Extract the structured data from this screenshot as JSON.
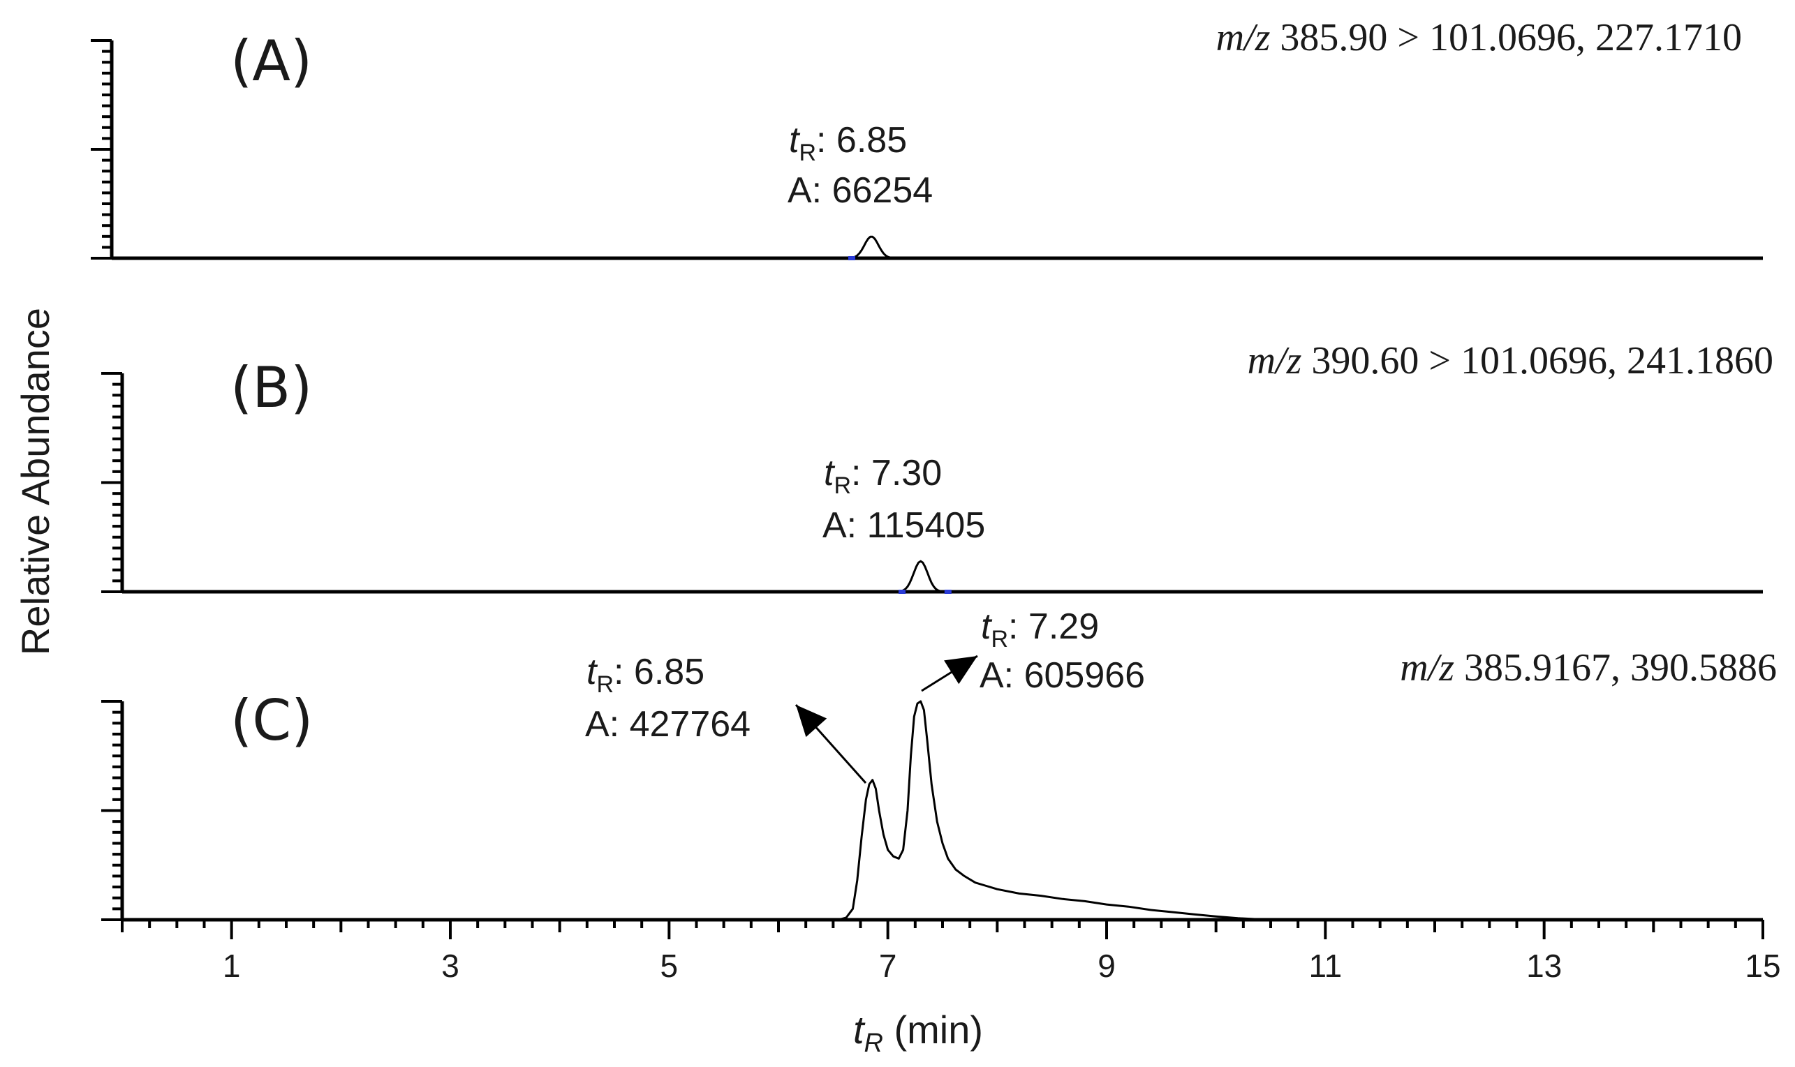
{
  "chart_data": {
    "type": "line",
    "xlabel_var": "t",
    "xlabel_sub": "R",
    "xlabel_unit": " (min)",
    "ylabel": "Relative  Abundance",
    "xlim": [
      0,
      15
    ],
    "xtick_labels": [
      "1",
      "3",
      "5",
      "7",
      "9",
      "11",
      "13",
      "15"
    ],
    "xtick_values": [
      1,
      3,
      5,
      7,
      9,
      11,
      13,
      15
    ],
    "panels": [
      {
        "id": "A",
        "label": "(A)",
        "mz_prefix": "m/z",
        "mz_text": " 385.90 > 101.0696, 227.1710",
        "peaks": [
          {
            "tR": 6.85,
            "rel_height": 0.1,
            "width": 0.09
          }
        ],
        "baseline_marks": [
          6.67
        ],
        "annotations": [
          {
            "tR_label": "6.85",
            "area_label": "66254",
            "tR_prefix": "t",
            "tR_sub": "R",
            "area_prefix": "A: "
          }
        ]
      },
      {
        "id": "B",
        "label": "(B)",
        "mz_prefix": "m/z",
        "mz_text": " 390.60 > 101.0696, 241.1860",
        "peaks": [
          {
            "tR": 7.3,
            "rel_height": 0.14,
            "width": 0.09
          }
        ],
        "baseline_marks": [
          7.13,
          7.55
        ],
        "annotations": [
          {
            "tR_label": "7.30",
            "area_label": "115405",
            "tR_prefix": "t",
            "tR_sub": "R",
            "area_prefix": "A: "
          }
        ]
      },
      {
        "id": "C",
        "label": "(C)",
        "mz_prefix": "m/z",
        "mz_text": " 385.9167, 390.5886",
        "trace": [
          [
            0,
            0
          ],
          [
            6.55,
            0
          ],
          [
            6.62,
            0.01
          ],
          [
            6.68,
            0.05
          ],
          [
            6.72,
            0.18
          ],
          [
            6.76,
            0.38
          ],
          [
            6.8,
            0.55
          ],
          [
            6.83,
            0.62
          ],
          [
            6.86,
            0.64
          ],
          [
            6.89,
            0.6
          ],
          [
            6.92,
            0.5
          ],
          [
            6.96,
            0.39
          ],
          [
            7.0,
            0.32
          ],
          [
            7.05,
            0.29
          ],
          [
            7.1,
            0.28
          ],
          [
            7.14,
            0.32
          ],
          [
            7.18,
            0.5
          ],
          [
            7.21,
            0.75
          ],
          [
            7.24,
            0.93
          ],
          [
            7.27,
            0.99
          ],
          [
            7.3,
            1.0
          ],
          [
            7.33,
            0.96
          ],
          [
            7.36,
            0.82
          ],
          [
            7.4,
            0.62
          ],
          [
            7.45,
            0.45
          ],
          [
            7.5,
            0.35
          ],
          [
            7.55,
            0.28
          ],
          [
            7.62,
            0.23
          ],
          [
            7.7,
            0.2
          ],
          [
            7.8,
            0.17
          ],
          [
            7.9,
            0.155
          ],
          [
            8.0,
            0.14
          ],
          [
            8.2,
            0.12
          ],
          [
            8.4,
            0.11
          ],
          [
            8.6,
            0.095
          ],
          [
            8.8,
            0.085
          ],
          [
            9.0,
            0.07
          ],
          [
            9.2,
            0.06
          ],
          [
            9.4,
            0.045
          ],
          [
            9.6,
            0.035
          ],
          [
            9.8,
            0.025
          ],
          [
            10.0,
            0.015
          ],
          [
            10.2,
            0.007
          ],
          [
            10.4,
            0.002
          ],
          [
            15,
            0
          ]
        ],
        "annotations": [
          {
            "tR_label": "6.85",
            "area_label": "427764",
            "tR_prefix": "t",
            "tR_sub": "R",
            "area_prefix": "A: ",
            "peak_tR": 6.85,
            "peak_rel": 0.64
          },
          {
            "tR_label": "7.29",
            "area_label": "605966",
            "tR_prefix": "t",
            "tR_sub": "R",
            "area_prefix": "A: ",
            "peak_tR": 7.29,
            "peak_rel": 1.0
          }
        ]
      }
    ]
  }
}
